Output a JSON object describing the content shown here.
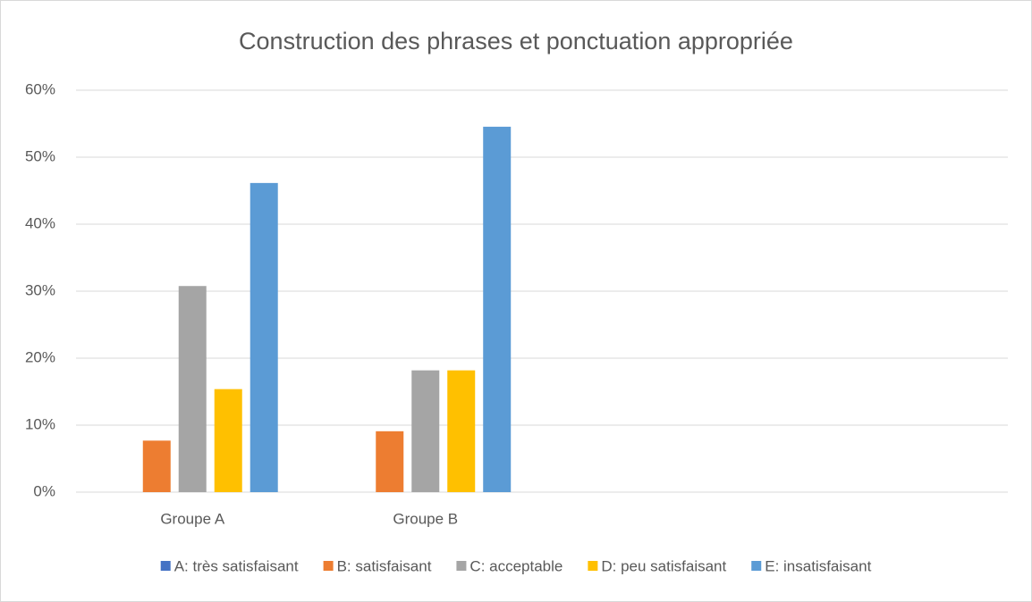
{
  "chart_data": {
    "type": "bar",
    "title": "Construction des phrases et ponctuation appropriée",
    "categories": [
      "Groupe A",
      "Groupe B",
      null,
      null
    ],
    "series": [
      {
        "name": "A: très satisfaisant",
        "color": "#4472c4",
        "values": [
          0,
          0,
          null,
          null
        ]
      },
      {
        "name": "B: satisfaisant",
        "color": "#ed7d31",
        "values": [
          7.69,
          9.09,
          null,
          null
        ]
      },
      {
        "name": "C: acceptable",
        "color": "#a5a5a5",
        "values": [
          30.77,
          18.18,
          null,
          null
        ]
      },
      {
        "name": "D: peu satisfaisant",
        "color": "#ffc000",
        "values": [
          15.38,
          18.18,
          null,
          null
        ]
      },
      {
        "name": "E: insatisfaisant",
        "color": "#5b9bd5",
        "values": [
          46.15,
          54.55,
          null,
          null
        ]
      }
    ],
    "ylim": [
      0,
      60
    ],
    "yticks": [
      {
        "value": 0,
        "label": "0%"
      },
      {
        "value": 10,
        "label": "10%"
      },
      {
        "value": 20,
        "label": "20%"
      },
      {
        "value": 30,
        "label": "30%"
      },
      {
        "value": 40,
        "label": "40%"
      },
      {
        "value": 50,
        "label": "50%"
      },
      {
        "value": 60,
        "label": "60%"
      }
    ],
    "grid": true,
    "legend": "bottom"
  }
}
